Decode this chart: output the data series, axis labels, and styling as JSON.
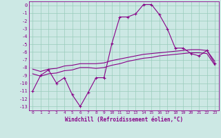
{
  "xlabel": "Windchill (Refroidissement éolien,°C)",
  "bg_color": "#cce8e4",
  "line_color": "#880088",
  "grid_color": "#99ccbb",
  "x_hours": [
    0,
    1,
    2,
    3,
    4,
    5,
    6,
    7,
    8,
    9,
    10,
    11,
    12,
    13,
    14,
    15,
    16,
    17,
    18,
    19,
    20,
    21,
    22,
    23
  ],
  "line1_y": [
    -11.0,
    -9.0,
    -8.3,
    -10.0,
    -9.3,
    -11.5,
    -13.0,
    -11.2,
    -9.3,
    -9.3,
    -4.9,
    -1.5,
    -1.5,
    -1.1,
    0.1,
    0.1,
    -1.2,
    -3.0,
    -5.5,
    -5.5,
    -6.2,
    -6.5,
    -5.8,
    -7.5
  ],
  "line2_y": [
    -8.2,
    -8.5,
    -8.2,
    -8.1,
    -7.8,
    -7.7,
    -7.5,
    -7.5,
    -7.5,
    -7.4,
    -7.1,
    -6.9,
    -6.7,
    -6.5,
    -6.3,
    -6.2,
    -6.1,
    -6.0,
    -5.9,
    -5.8,
    -5.7,
    -5.7,
    -5.8,
    -7.2
  ],
  "line3_y": [
    -8.8,
    -9.1,
    -8.8,
    -8.7,
    -8.4,
    -8.3,
    -8.0,
    -8.0,
    -8.1,
    -8.0,
    -7.7,
    -7.5,
    -7.2,
    -7.0,
    -6.8,
    -6.7,
    -6.5,
    -6.4,
    -6.3,
    -6.2,
    -6.1,
    -6.1,
    -6.2,
    -7.7
  ],
  "ylim": [
    -13.5,
    0.5
  ],
  "yticks": [
    0,
    -1,
    -2,
    -3,
    -4,
    -5,
    -6,
    -7,
    -8,
    -9,
    -10,
    -11,
    -12,
    -13
  ],
  "xlim": [
    -0.5,
    23.5
  ]
}
